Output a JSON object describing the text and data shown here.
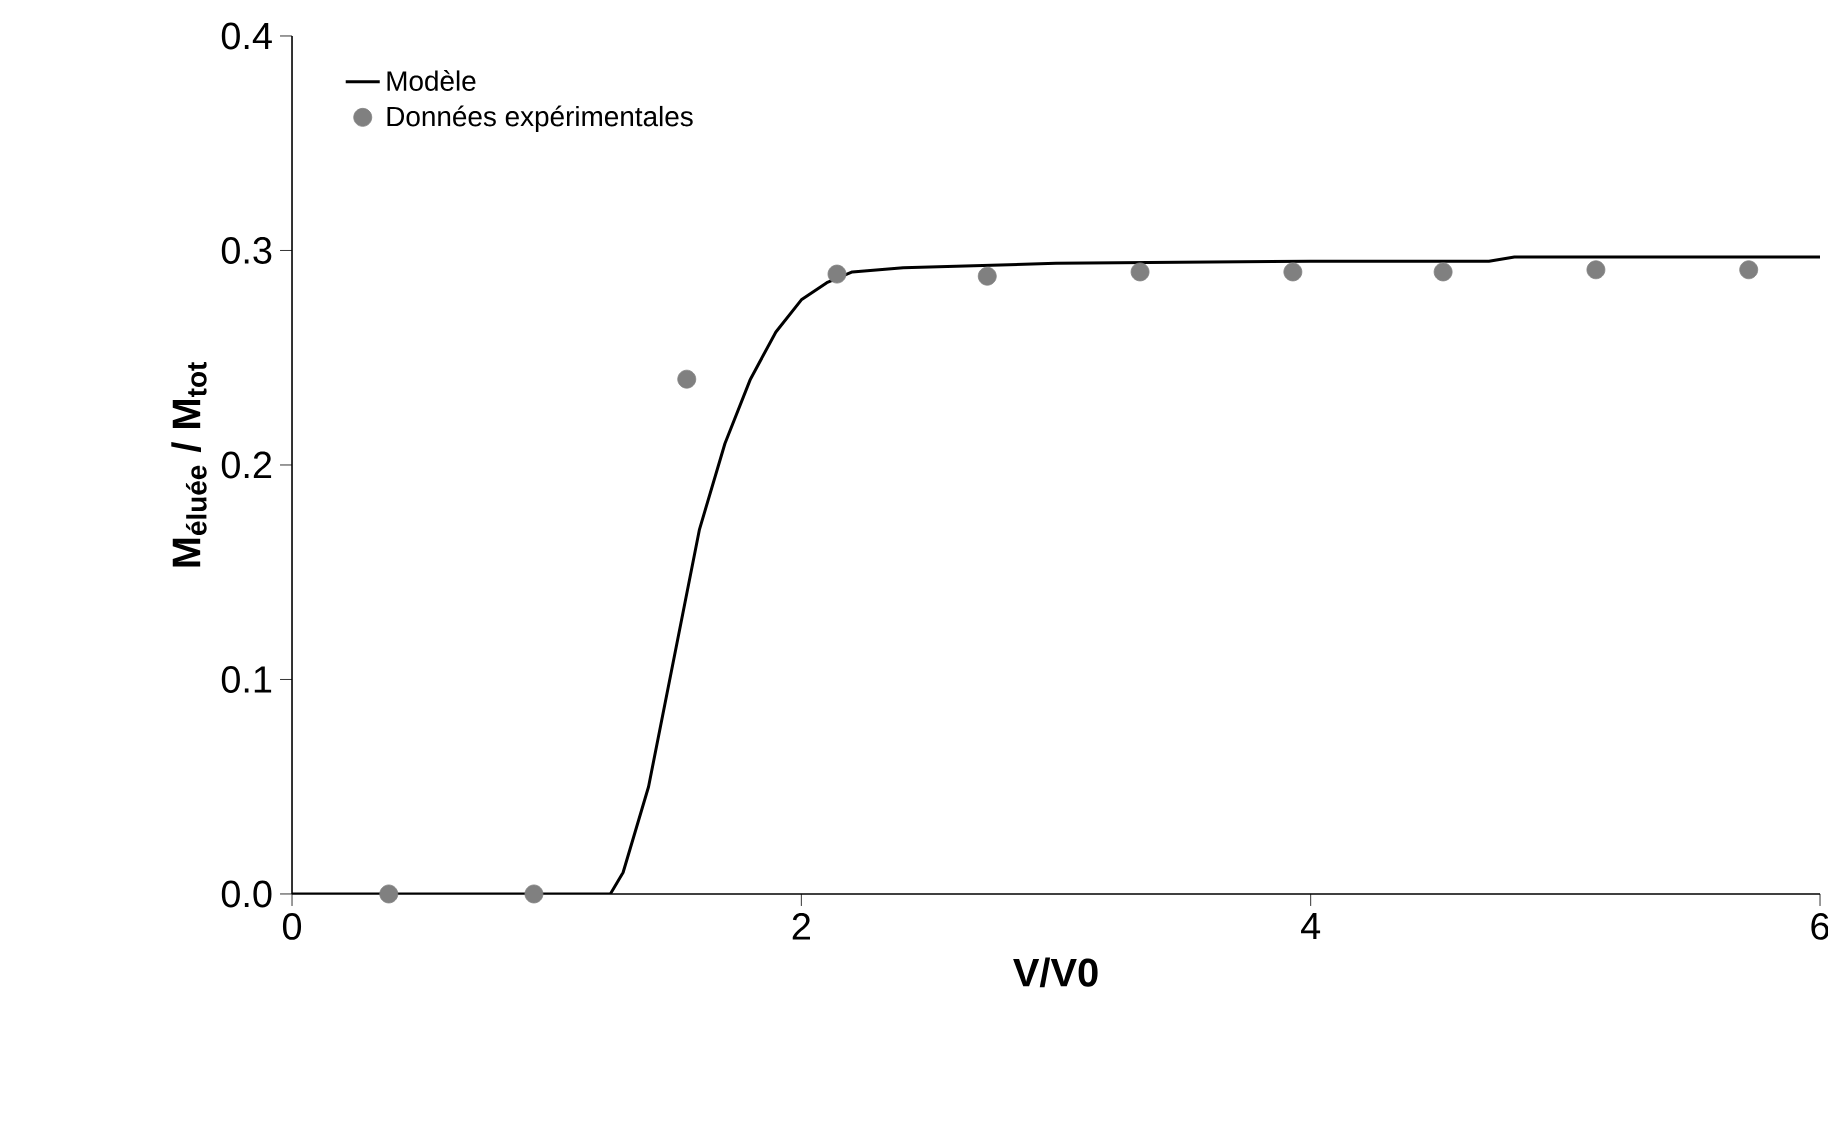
{
  "chart_data": {
    "type": "line",
    "xlabel": "V/V0",
    "ylabel": "M$_{éluée}$ / M$_{tot}$",
    "xlim": [
      0,
      6
    ],
    "ylim": [
      0,
      0.4
    ],
    "xticks": [
      0,
      2,
      4,
      6
    ],
    "yticks": [
      {
        "value": 0,
        "label": "0.0"
      },
      0.1,
      0.2,
      0.3,
      0.4
    ],
    "grid": false,
    "legend": "top left",
    "series": [
      {
        "name": "Modèle",
        "color": "#000000",
        "marker": "none",
        "line_style": "solid",
        "x": [
          0,
          1.25,
          1.3,
          1.4,
          1.5,
          1.6,
          1.7,
          1.8,
          1.9,
          2.0,
          2.1,
          2.2,
          2.4,
          3.0,
          4.0,
          4.7,
          4.8,
          6.0
        ],
        "values": [
          0,
          0,
          0.01,
          0.05,
          0.11,
          0.17,
          0.21,
          0.24,
          0.262,
          0.277,
          0.285,
          0.29,
          0.292,
          0.294,
          0.295,
          0.295,
          0.297,
          0.297
        ]
      },
      {
        "name": "Données expérimentales",
        "type": "scatter",
        "color": "#808080",
        "marker": "circle",
        "x": [
          0.38,
          0.95,
          1.55,
          2.14,
          2.73,
          3.33,
          3.93,
          4.52,
          5.12,
          5.72
        ],
        "values": [
          0,
          0,
          0.24,
          0.289,
          0.288,
          0.29,
          0.29,
          0.29,
          0.291,
          0.291
        ]
      }
    ]
  }
}
